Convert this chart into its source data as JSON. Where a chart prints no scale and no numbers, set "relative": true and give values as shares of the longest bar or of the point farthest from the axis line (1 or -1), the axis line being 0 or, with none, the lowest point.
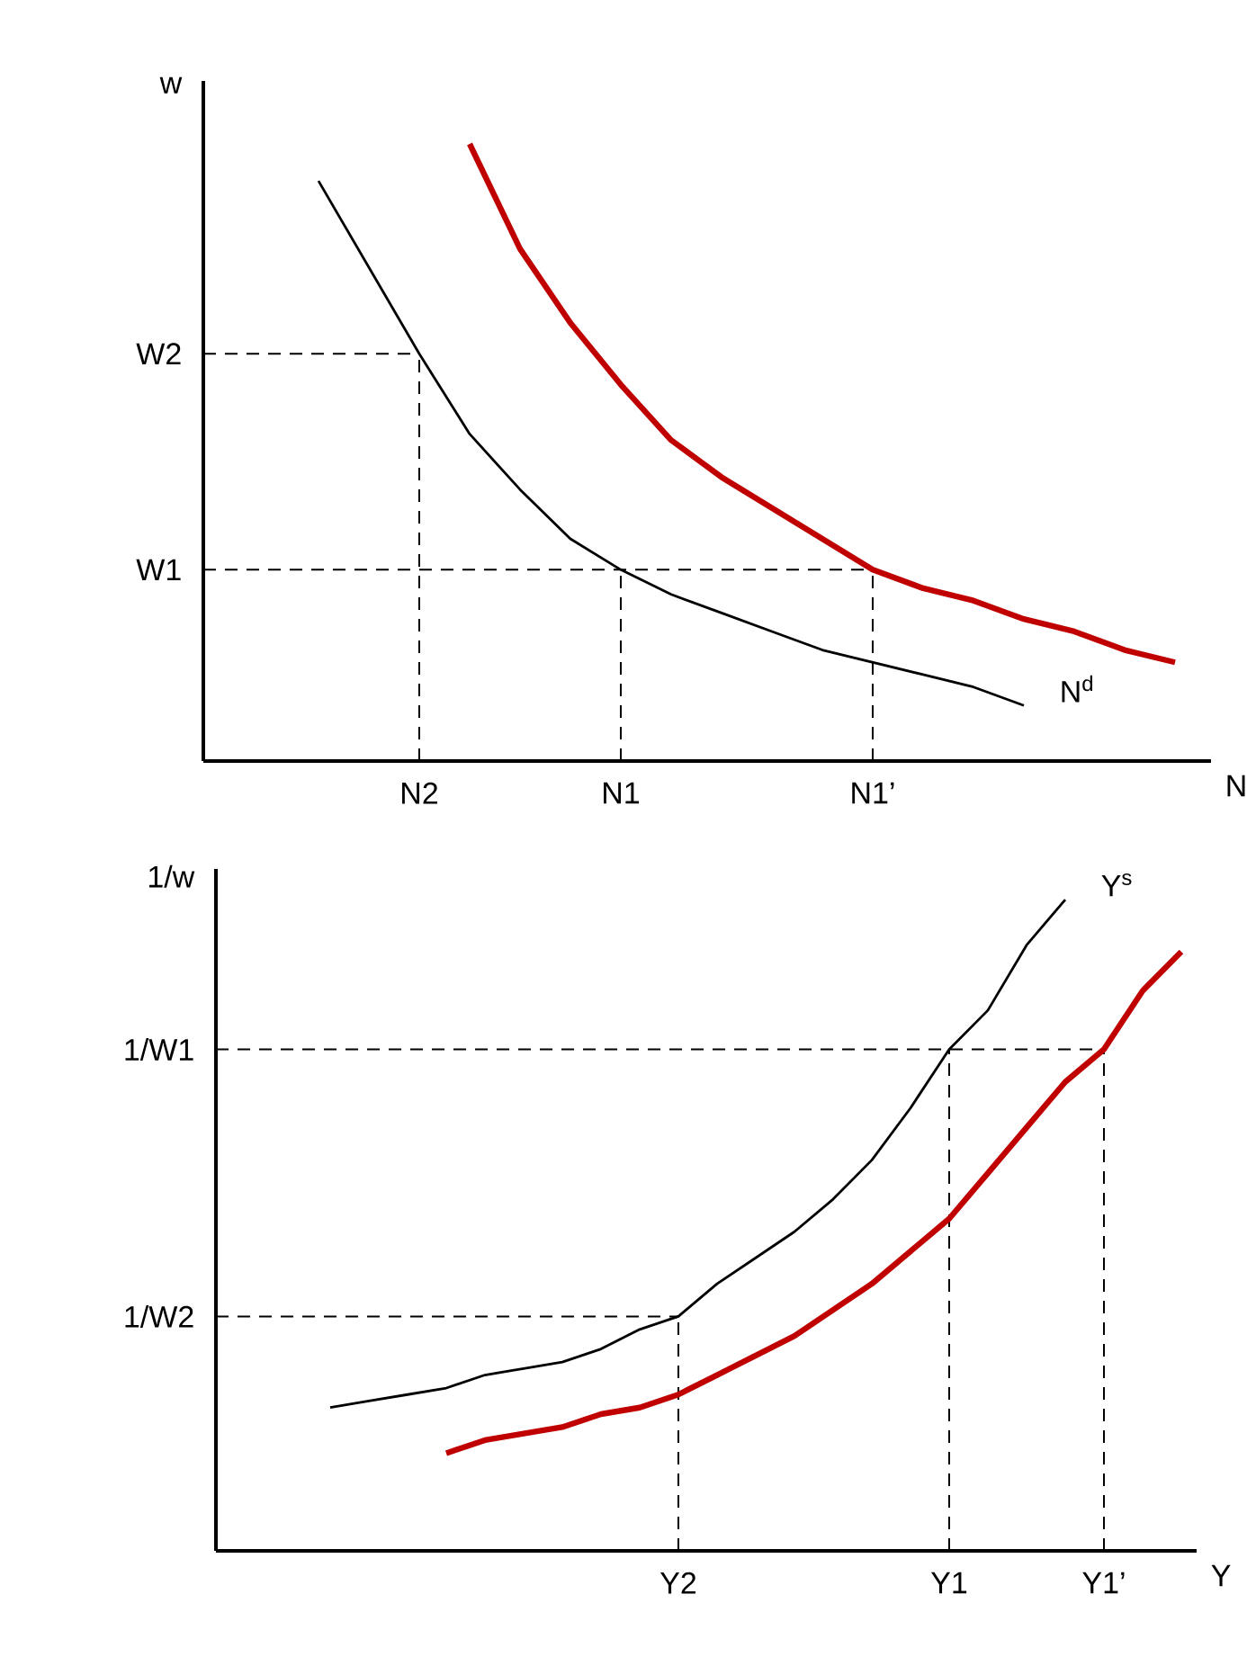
{
  "chart_data": [
    {
      "type": "line",
      "relative": true,
      "ylabel": "w",
      "xlabel": "N",
      "categories": [
        null,
        null,
        "N2",
        null,
        null,
        null,
        "N1",
        null,
        null,
        null,
        null,
        "N1’",
        null,
        null,
        null,
        null,
        null,
        null
      ],
      "series": [
        {
          "name": "N$^{d}$",
          "color": "#000000",
          "values": [
            0.94,
            0.8,
            0.66,
            0.53,
            0.44,
            0.36,
            0.31,
            0.27,
            0.24,
            0.21,
            0.18,
            0.16,
            0.14,
            0.12,
            0.09,
            null,
            null,
            null
          ]
        },
        {
          "color": "#c00000",
          "values": [
            null,
            null,
            null,
            1.0,
            0.83,
            0.71,
            0.61,
            0.52,
            0.46,
            0.41,
            0.36,
            0.31,
            0.28,
            0.26,
            0.23,
            0.21,
            0.18,
            0.16
          ]
        }
      ],
      "ref_lines": [
        {
          "axis": "y",
          "value": 0.66,
          "label": "W2",
          "line_style": "dashed"
        },
        {
          "axis": "y",
          "value": 0.31,
          "label": "W1",
          "line_style": "dashed"
        },
        {
          "axis": "x",
          "value": "N2",
          "line_style": "dashed"
        },
        {
          "axis": "x",
          "value": "N1",
          "line_style": "dashed"
        },
        {
          "axis": "x",
          "value": "N1’",
          "line_style": "dashed"
        }
      ]
    },
    {
      "type": "line",
      "relative": true,
      "ylabel": "1/w",
      "xlabel": "Y",
      "categories": [
        null,
        null,
        null,
        null,
        null,
        null,
        null,
        null,
        null,
        "Y2",
        null,
        null,
        null,
        null,
        null,
        null,
        "Y1",
        null,
        null,
        null,
        "Y1’",
        null,
        null
      ],
      "series": [
        {
          "name": "Y$^{s}$",
          "color": "#000000",
          "values": [
            0.22,
            0.23,
            0.24,
            0.25,
            0.27,
            0.28,
            0.29,
            0.31,
            0.34,
            0.36,
            0.41,
            0.45,
            0.49,
            0.54,
            0.6,
            0.68,
            0.77,
            0.83,
            0.93,
            1.0,
            null,
            null,
            null
          ]
        },
        {
          "color": "#c00000",
          "values": [
            null,
            null,
            null,
            0.15,
            0.17,
            0.18,
            0.19,
            0.21,
            0.22,
            0.24,
            0.27,
            0.3,
            0.33,
            0.37,
            0.41,
            0.46,
            0.51,
            0.58,
            0.65,
            0.72,
            0.77,
            0.86,
            0.92
          ]
        }
      ],
      "ref_lines": [
        {
          "axis": "y",
          "value": 0.77,
          "label": "1/W1",
          "line_style": "dashed"
        },
        {
          "axis": "y",
          "value": 0.36,
          "label": "1/W2",
          "line_style": "dashed"
        },
        {
          "axis": "x",
          "value": "Y2",
          "line_style": "dashed"
        },
        {
          "axis": "x",
          "value": "Y1",
          "line_style": "dashed"
        },
        {
          "axis": "x",
          "value": "Y1’",
          "line_style": "dashed"
        }
      ]
    }
  ]
}
